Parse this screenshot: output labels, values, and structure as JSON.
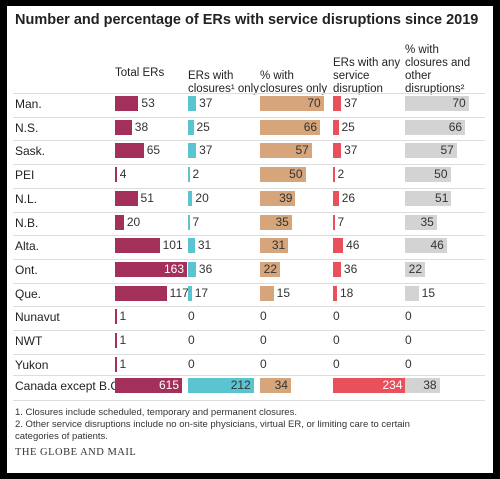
{
  "title": "Number and percentage of ERs with service disruptions since 2019",
  "table": {
    "columns": [
      "Total ERs",
      "ERs with closures¹ only",
      "% with closures only",
      "ERs with any service disruption",
      "% with closures and other disruptions²"
    ],
    "colors": [
      "#a3305a",
      "#5bc4d1",
      "#d6a57c",
      "#e8505b",
      "#d3d3d3"
    ],
    "rows": [
      {
        "label": "Man.",
        "values": [
          53,
          37,
          70,
          37,
          70
        ]
      },
      {
        "label": "N.S.",
        "values": [
          38,
          25,
          66,
          25,
          66
        ]
      },
      {
        "label": "Sask.",
        "values": [
          65,
          37,
          57,
          37,
          57
        ]
      },
      {
        "label": "PEI",
        "values": [
          4,
          2,
          50,
          2,
          50
        ]
      },
      {
        "label": "N.L.",
        "values": [
          51,
          20,
          39,
          26,
          51
        ]
      },
      {
        "label": "N.B.",
        "values": [
          20,
          7,
          35,
          7,
          35
        ]
      },
      {
        "label": "Alta.",
        "values": [
          101,
          31,
          31,
          46,
          46
        ]
      },
      {
        "label": "Ont.",
        "values": [
          163,
          36,
          22,
          36,
          22
        ]
      },
      {
        "label": "Que.",
        "values": [
          117,
          17,
          15,
          18,
          15
        ]
      },
      {
        "label": "Nunavut",
        "values": [
          1,
          0,
          0,
          0,
          0
        ]
      },
      {
        "label": "NWT",
        "values": [
          1,
          0,
          0,
          0,
          0
        ]
      },
      {
        "label": "Yukon",
        "values": [
          1,
          0,
          0,
          0,
          0
        ]
      },
      {
        "label": "Canada except B.C.",
        "values": [
          615,
          212,
          34,
          234,
          38
        ]
      }
    ]
  },
  "footnotes": [
    "1. Closures include scheduled, temporary and permanent closures.",
    "2. Other service disruptions include no on-site physicians, virtual ER, or limiting care to certain categories of patients."
  ],
  "source": "THE GLOBE AND MAIL"
}
